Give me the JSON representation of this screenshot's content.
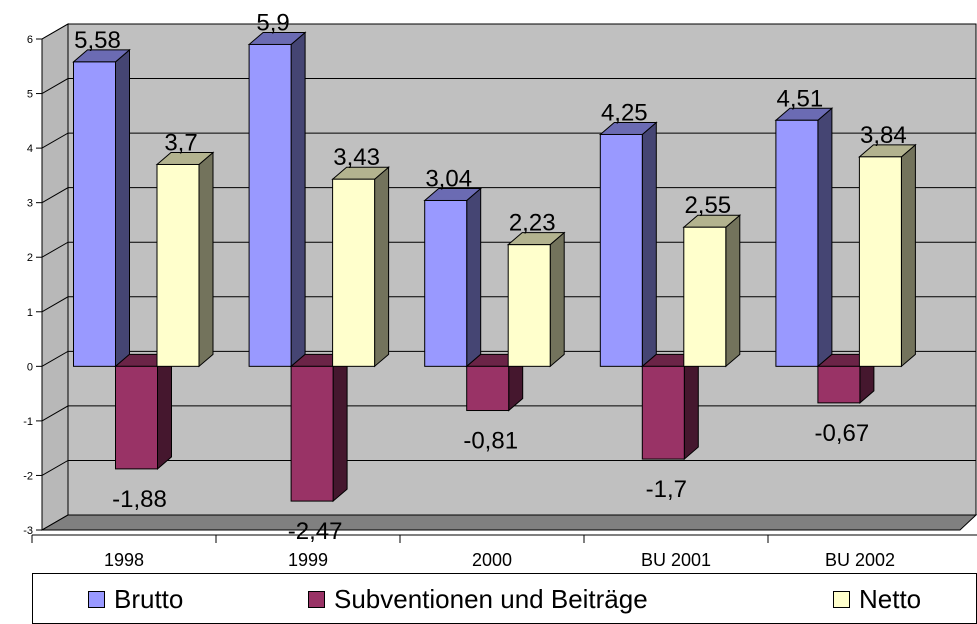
{
  "chart_data": {
    "type": "bar",
    "title": "",
    "xlabel": "",
    "ylabel": "",
    "categories": [
      "1998",
      "1999",
      "2000",
      "BU 2001",
      "BU 2002"
    ],
    "series": [
      {
        "name": "Brutto",
        "values": [
          5.58,
          5.9,
          3.04,
          4.25,
          4.51
        ],
        "labels": [
          "5,58",
          "5,9",
          "3,04",
          "4,25",
          "4,51"
        ]
      },
      {
        "name": "Subventionen und Beiträge",
        "values": [
          -1.88,
          -2.47,
          -0.81,
          -1.7,
          -0.67
        ],
        "labels": [
          "-1,88",
          "-2,47",
          "-0,81",
          "-1,7",
          "-0,67"
        ]
      },
      {
        "name": "Netto",
        "values": [
          3.7,
          3.43,
          2.23,
          2.55,
          3.84
        ],
        "labels": [
          "3,7",
          "3,43",
          "2,23",
          "2,55",
          "3,84"
        ]
      }
    ],
    "ylim": [
      -3,
      6
    ],
    "yticks": [
      "-3",
      "-2",
      "-1",
      "0",
      "1",
      "2",
      "3",
      "4",
      "5",
      "6"
    ],
    "grid": true,
    "style": "3d-clustered-column",
    "legend_position": "bottom",
    "colors": {
      "Brutto": "#9999ff",
      "Subventionen und Beiträge": "#993366",
      "Netto": "#ffffcc",
      "wall": "#c0c0c0",
      "floor": "#808080"
    }
  }
}
